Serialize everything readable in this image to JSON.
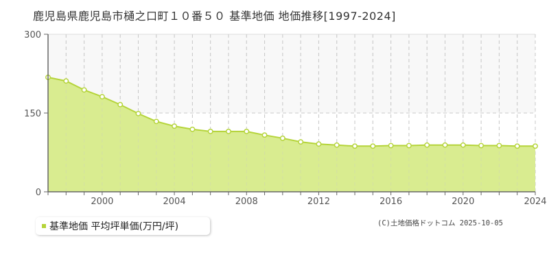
{
  "title": "鹿児島県鹿児島市樋之口町１０番５０ 基準地価 地価推移[1997-2024]",
  "legend": {
    "label": "基準地価 平均坪単価(万円/坪)",
    "color": "#b5d43a"
  },
  "copyright": "(C)土地価格ドットコム 2025-10-05",
  "colors": {
    "area_fill": "#d9ec90",
    "line": "#b5d43a",
    "grid": "#c8c8c8",
    "axis": "#666666",
    "band": "#f8f8f8"
  },
  "chart_data": {
    "type": "area",
    "title": "鹿児島県鹿児島市樋之口町１０番５０ 基準地価 地価推移[1997-2024]",
    "xlabel": "",
    "ylabel": "",
    "x": [
      1997,
      1998,
      1999,
      2000,
      2001,
      2002,
      2003,
      2004,
      2005,
      2006,
      2007,
      2008,
      2009,
      2010,
      2011,
      2012,
      2013,
      2014,
      2015,
      2016,
      2017,
      2018,
      2019,
      2020,
      2021,
      2022,
      2023,
      2024
    ],
    "series": [
      {
        "name": "基準地価 平均坪単価(万円/坪)",
        "values": [
          218,
          211,
          194,
          181,
          166,
          149,
          134,
          125,
          119,
          115,
          115,
          115,
          108,
          102,
          95,
          91,
          89,
          87,
          87,
          88,
          88,
          89,
          89,
          89,
          88,
          88,
          87,
          87
        ]
      }
    ],
    "x_tick_labels": [
      "2000",
      "2004",
      "2008",
      "2012",
      "2016",
      "2020",
      "2024"
    ],
    "y_tick_labels": [
      "0",
      "150",
      "300"
    ],
    "ylim": [
      0,
      300
    ],
    "xlim": [
      1997,
      2024
    ],
    "grid": true,
    "legend_position": "bottom-left"
  }
}
